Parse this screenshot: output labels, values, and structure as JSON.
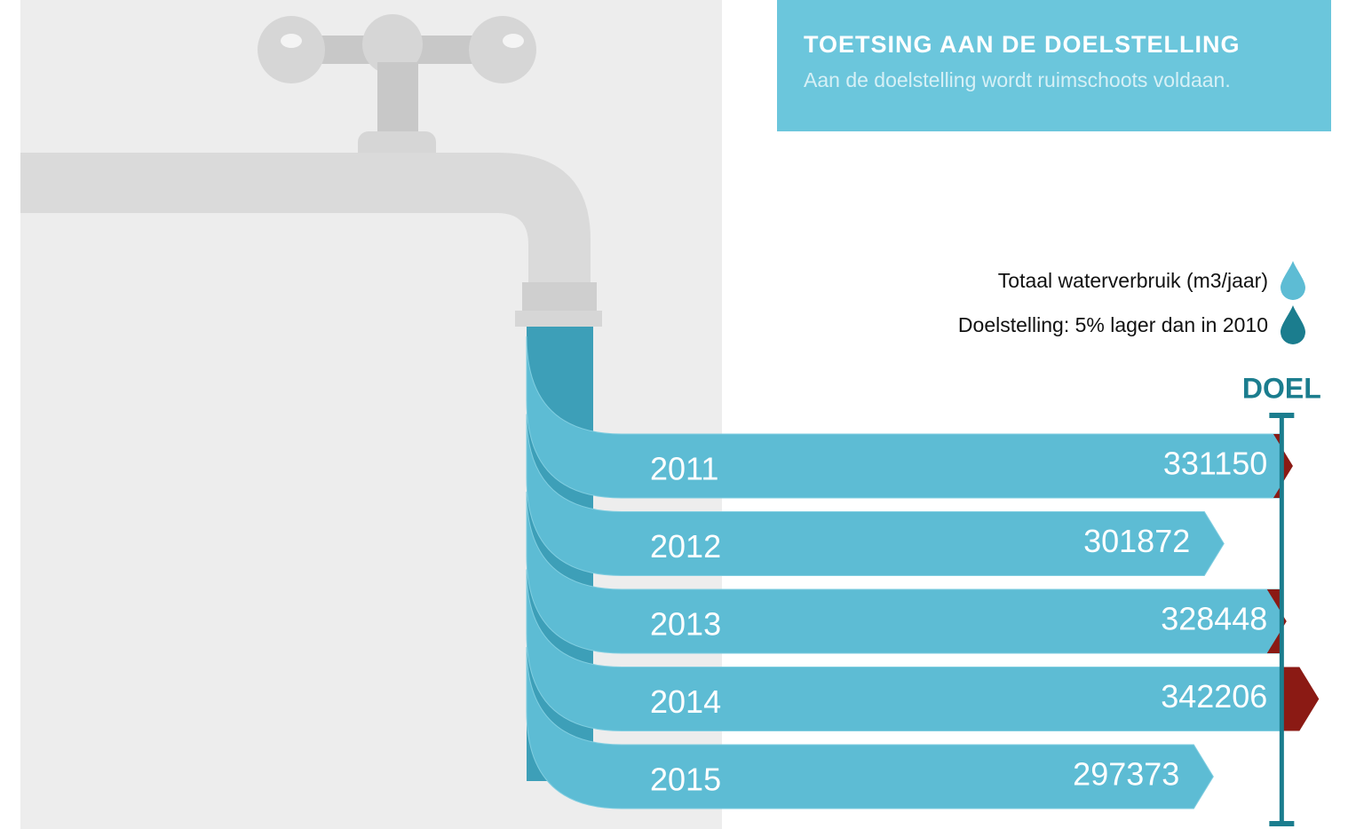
{
  "chart_data": {
    "type": "bar",
    "title": "TOETSING AAN DE DOELSTELLING",
    "subtitle": "Aan de doelstelling wordt ruimschoots voldaan.",
    "categories": [
      "2011",
      "2012",
      "2013",
      "2014",
      "2015"
    ],
    "values": [
      331150,
      301872,
      328448,
      342206,
      297373
    ],
    "xlim": [
      0,
      350000
    ],
    "target": 326400,
    "target_label": "DOEL",
    "over_color": "#8b1a14",
    "legend": [
      {
        "label": "Totaal waterverbruik (m3/jaar)",
        "color": "#5dbcd4"
      },
      {
        "label": "Doelstelling: 5% lager dan in 2010",
        "color": "#1b7d8e"
      }
    ]
  }
}
